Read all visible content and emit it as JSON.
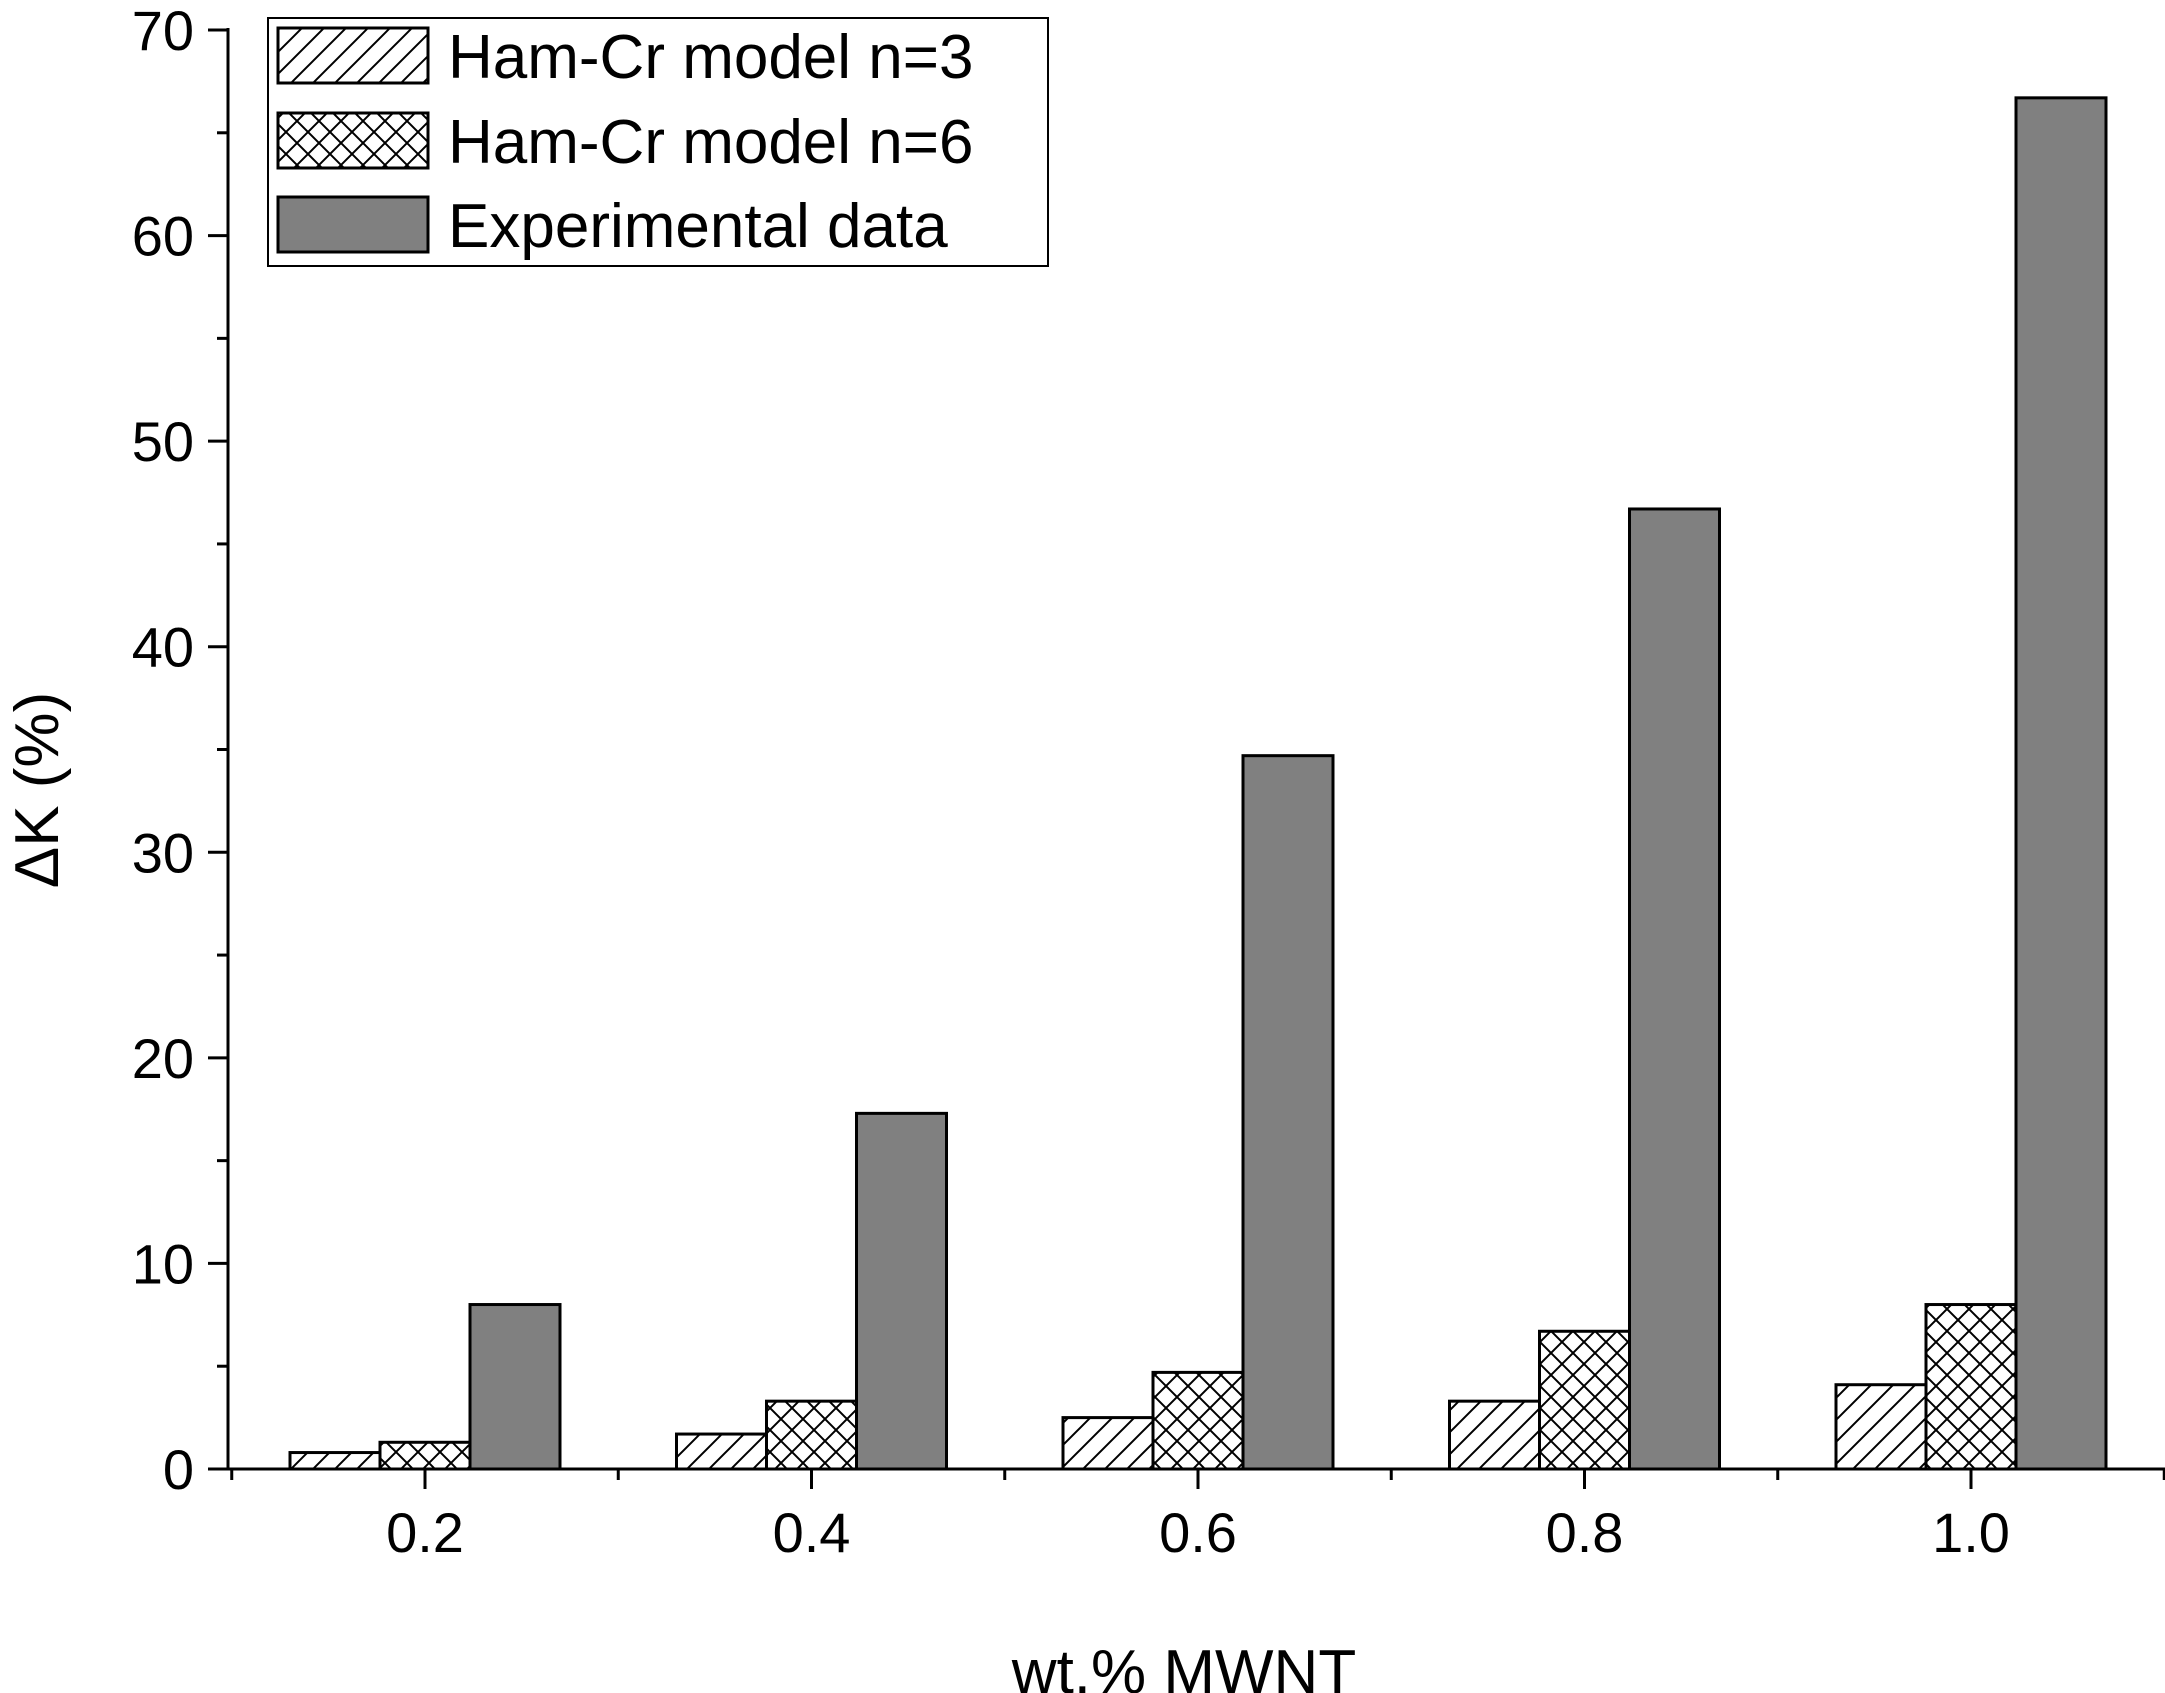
{
  "chart_data": {
    "type": "bar",
    "title": "",
    "xlabel": "wt.% MWNT",
    "ylabel": "ΔK (%)",
    "categories": [
      "0.2",
      "0.4",
      "0.6",
      "0.8",
      "1.0"
    ],
    "ylim": [
      0,
      70
    ],
    "yticks": [
      "0",
      "10",
      "20",
      "30",
      "40",
      "50",
      "60",
      "70"
    ],
    "grid": false,
    "legend_position": "top-left",
    "series": [
      {
        "name": "Ham-Cr model n=3",
        "fill": "diagonal-hatch",
        "values": [
          0.8,
          1.7,
          2.5,
          3.3,
          4.1
        ]
      },
      {
        "name": "Ham-Cr model n=6",
        "fill": "cross-hatch",
        "values": [
          1.3,
          3.3,
          4.7,
          6.7,
          8.0
        ]
      },
      {
        "name": "Experimental data",
        "fill": "solid",
        "color": "#808080",
        "values": [
          8.0,
          17.3,
          34.7,
          46.7,
          66.7
        ]
      }
    ]
  }
}
